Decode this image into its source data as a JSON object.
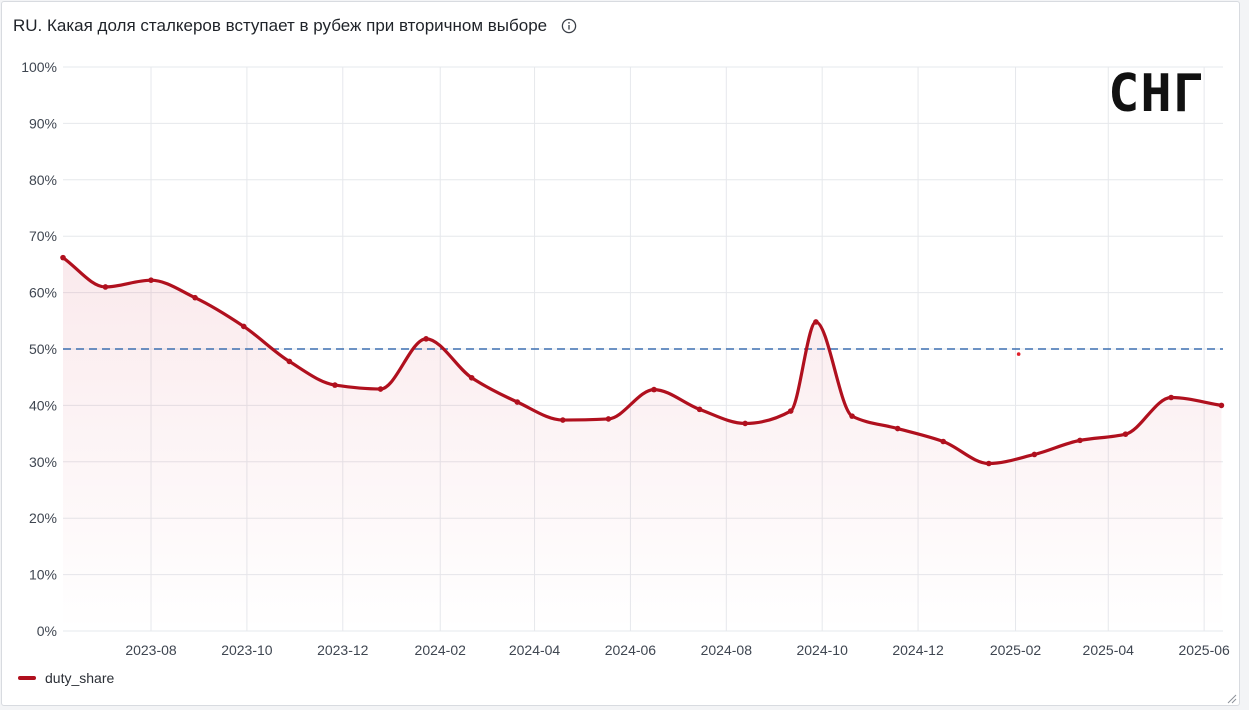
{
  "panel": {
    "title": "RU. Какая доля сталкеров вступает в рубеж при вторичном выборе",
    "info_icon": "info-circle-icon",
    "overlay_label": "СНГ",
    "resize_icon": "resize-corner-icon"
  },
  "chart_data": {
    "type": "area",
    "title": "RU. Какая доля сталкеров вступает в рубеж при вторичном выборе",
    "xlabel": "",
    "ylabel": "",
    "ylim": [
      0,
      100
    ],
    "y_unit": "%",
    "y_ticks": [
      "0%",
      "10%",
      "20%",
      "30%",
      "40%",
      "50%",
      "60%",
      "70%",
      "80%",
      "90%",
      "100%"
    ],
    "x_ticks": [
      {
        "date": "2023-08-01",
        "label": "2023-08"
      },
      {
        "date": "2023-10-01",
        "label": "2023-10"
      },
      {
        "date": "2023-12-01",
        "label": "2023-12"
      },
      {
        "date": "2024-02-01",
        "label": "2024-02"
      },
      {
        "date": "2024-04-01",
        "label": "2024-04"
      },
      {
        "date": "2024-06-01",
        "label": "2024-06"
      },
      {
        "date": "2024-08-01",
        "label": "2024-08"
      },
      {
        "date": "2024-10-01",
        "label": "2024-10"
      },
      {
        "date": "2024-12-01",
        "label": "2024-12"
      },
      {
        "date": "2025-02-01",
        "label": "2025-02"
      },
      {
        "date": "2025-04-01",
        "label": "2025-04"
      },
      {
        "date": "2025-06-01",
        "label": "2025-06"
      }
    ],
    "xlim": [
      "2023-06-06",
      "2025-06-13"
    ],
    "series": [
      {
        "name": "duty_share",
        "color": "#b0101e",
        "points": [
          {
            "x": "2023-06-06",
            "y": 66.2
          },
          {
            "x": "2023-07-03",
            "y": 61.0
          },
          {
            "x": "2023-08-01",
            "y": 62.2
          },
          {
            "x": "2023-08-29",
            "y": 59.1
          },
          {
            "x": "2023-09-29",
            "y": 54.0
          },
          {
            "x": "2023-10-28",
            "y": 47.8
          },
          {
            "x": "2023-11-26",
            "y": 43.6
          },
          {
            "x": "2023-12-25",
            "y": 42.9
          },
          {
            "x": "2024-01-23",
            "y": 51.8
          },
          {
            "x": "2024-02-21",
            "y": 44.9
          },
          {
            "x": "2024-03-21",
            "y": 40.6
          },
          {
            "x": "2024-04-19",
            "y": 37.4
          },
          {
            "x": "2024-05-18",
            "y": 37.6
          },
          {
            "x": "2024-06-16",
            "y": 42.8
          },
          {
            "x": "2024-07-15",
            "y": 39.3
          },
          {
            "x": "2024-08-13",
            "y": 36.8
          },
          {
            "x": "2024-09-11",
            "y": 39.0
          },
          {
            "x": "2024-09-27",
            "y": 54.8
          },
          {
            "x": "2024-10-20",
            "y": 38.1
          },
          {
            "x": "2024-11-18",
            "y": 35.9
          },
          {
            "x": "2024-12-17",
            "y": 33.6
          },
          {
            "x": "2025-01-15",
            "y": 29.7
          },
          {
            "x": "2025-02-13",
            "y": 31.3
          },
          {
            "x": "2025-03-14",
            "y": 33.8
          },
          {
            "x": "2025-04-12",
            "y": 34.9
          },
          {
            "x": "2025-05-11",
            "y": 41.4
          },
          {
            "x": "2025-06-12",
            "y": 40.0
          }
        ]
      }
    ],
    "threshold": {
      "y": 50,
      "color": "#3b6fb0",
      "style": "dashed"
    },
    "stray_marker": {
      "x": "2025-02-03",
      "y": 49.1,
      "color": "#e0202a"
    },
    "grid": true,
    "legend": {
      "position": "bottom-left",
      "items": [
        "duty_share"
      ]
    }
  }
}
